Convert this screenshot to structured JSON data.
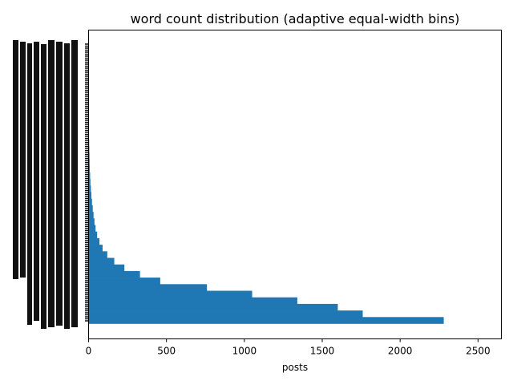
{
  "chart_data": {
    "type": "bar",
    "orientation": "horizontal",
    "title": "word count distribution (adaptive equal-width bins)",
    "xlabel": "posts",
    "ylabel": "",
    "xlim": [
      0,
      2650
    ],
    "xticks": [
      0,
      500,
      1000,
      1500,
      2000,
      2500
    ],
    "grid": false,
    "legend": "none",
    "bar_color": "#1f77b4",
    "y_tick_labels_note": "illegible overlapping labels",
    "bar_values_top_to_bottom": [
      2280,
      1760,
      1600,
      1340,
      1050,
      760,
      460,
      330,
      230,
      165,
      120,
      90,
      70,
      55,
      45,
      38,
      32,
      27,
      22,
      18,
      15,
      12,
      10,
      8,
      7,
      6,
      5,
      4,
      3,
      3,
      2,
      2,
      2,
      1,
      1,
      1,
      1,
      1,
      1,
      1
    ]
  }
}
